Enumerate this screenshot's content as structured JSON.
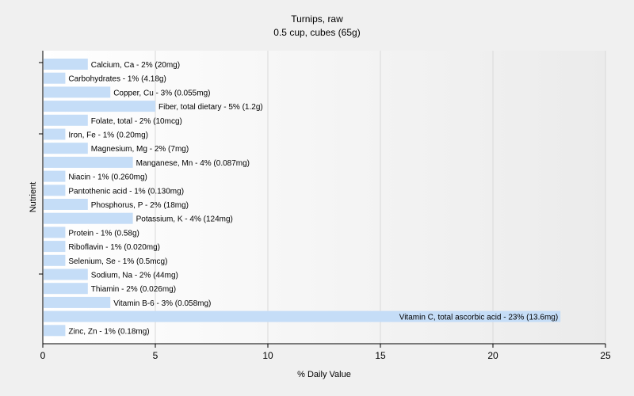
{
  "chart_data": {
    "type": "bar",
    "orientation": "horizontal",
    "title": "Turnips, raw",
    "subtitle": "0.5 cup, cubes (65g)",
    "xlabel": "% Daily Value",
    "ylabel": "Nutrient",
    "xlim": [
      0,
      25
    ],
    "xticks": [
      0,
      5,
      10,
      15,
      20,
      25
    ],
    "grid": true,
    "bar_color": "#c5ddf7",
    "categories": [
      "Calcium, Ca",
      "Carbohydrates",
      "Copper, Cu",
      "Fiber, total dietary",
      "Folate, total",
      "Iron, Fe",
      "Magnesium, Mg",
      "Manganese, Mn",
      "Niacin",
      "Pantothenic acid",
      "Phosphorus, P",
      "Potassium, K",
      "Protein",
      "Riboflavin",
      "Selenium, Se",
      "Sodium, Na",
      "Thiamin",
      "Vitamin B-6",
      "Vitamin C, total ascorbic acid",
      "Zinc, Zn"
    ],
    "values": [
      2,
      1,
      3,
      5,
      2,
      1,
      2,
      4,
      1,
      1,
      2,
      4,
      1,
      1,
      1,
      2,
      2,
      3,
      23,
      1
    ],
    "data_labels": [
      "Calcium, Ca - 2% (20mg)",
      "Carbohydrates - 1% (4.18g)",
      "Copper, Cu - 3% (0.055mg)",
      "Fiber, total dietary - 5% (1.2g)",
      "Folate, total - 2% (10mcg)",
      "Iron, Fe - 1% (0.20mg)",
      "Magnesium, Mg - 2% (7mg)",
      "Manganese, Mn - 4% (0.087mg)",
      "Niacin - 1% (0.260mg)",
      "Pantothenic acid - 1% (0.130mg)",
      "Phosphorus, P - 2% (18mg)",
      "Potassium, K - 4% (124mg)",
      "Protein - 1% (0.58g)",
      "Riboflavin - 1% (0.020mg)",
      "Selenium, Se - 1% (0.5mcg)",
      "Sodium, Na - 2% (44mg)",
      "Thiamin - 2% (0.026mg)",
      "Vitamin B-6 - 3% (0.058mg)",
      "Vitamin C, total ascorbic acid - 23% (13.6mg)",
      "Zinc, Zn - 1% (0.18mg)"
    ]
  }
}
